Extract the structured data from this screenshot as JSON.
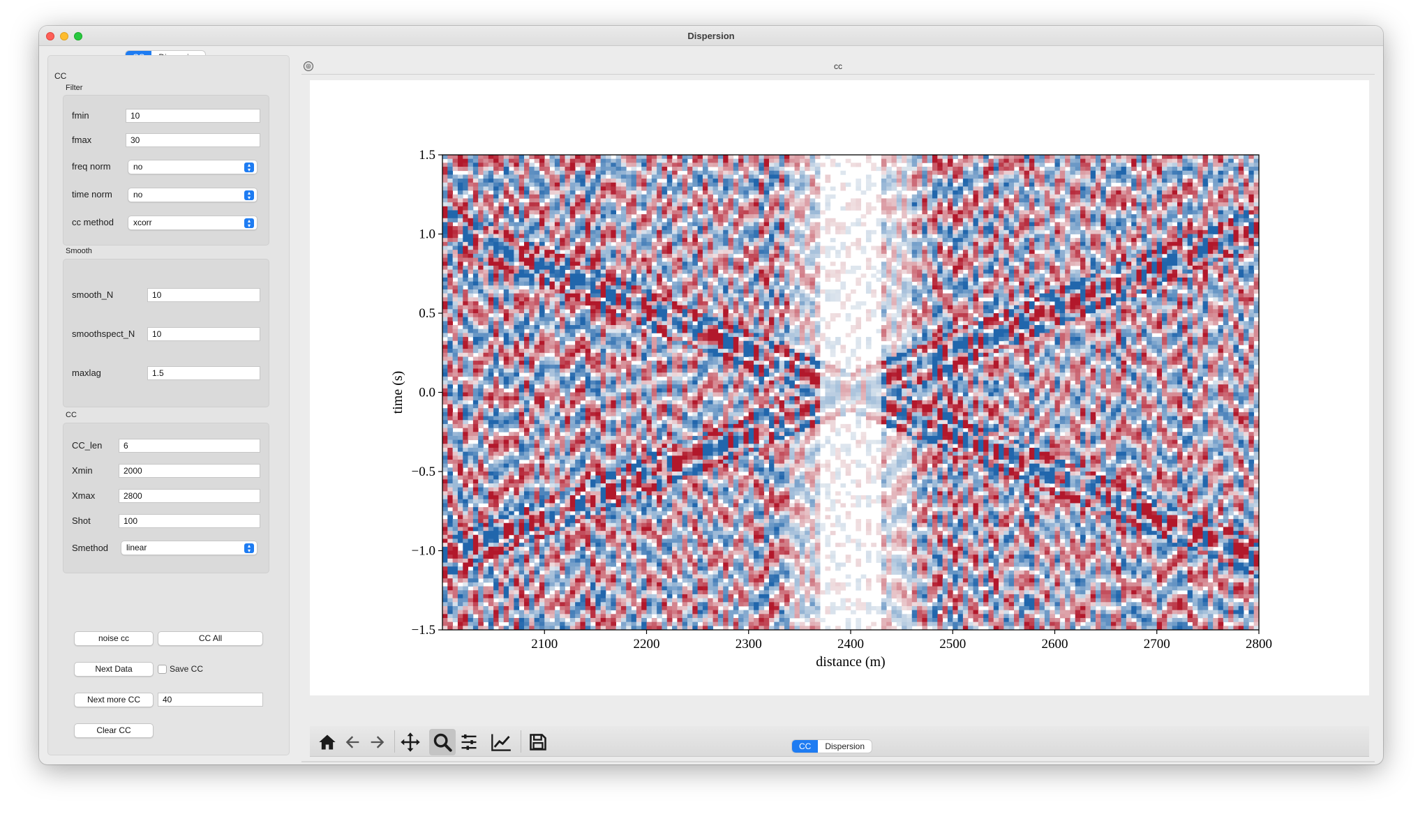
{
  "window": {
    "title": "Dispersion"
  },
  "left_tabs": [
    {
      "label": "CC",
      "active": true
    },
    {
      "label": "Dispersion",
      "active": false
    }
  ],
  "bottom_tabs": [
    {
      "label": "CC",
      "active": true
    },
    {
      "label": "Dispersion",
      "active": false
    }
  ],
  "panel": {
    "title": "CC",
    "filter": {
      "label": "Filter",
      "fmin_label": "fmin",
      "fmin_value": "10",
      "fmax_label": "fmax",
      "fmax_value": "30",
      "freqnorm_label": "freq norm",
      "freqnorm_value": "no",
      "timenorm_label": "time norm",
      "timenorm_value": "no",
      "ccmethod_label": "cc method",
      "ccmethod_value": "xcorr"
    },
    "smooth": {
      "label": "Smooth",
      "smoothN_label": "smooth_N",
      "smoothN_value": "10",
      "smoothspect_label": "smoothspect_N",
      "smoothspect_value": "10",
      "maxlag_label": "maxlag",
      "maxlag_value": "1.5"
    },
    "cc": {
      "label": "CC",
      "cclen_label": "CC_len",
      "cclen_value": "6",
      "xmin_label": "Xmin",
      "xmin_value": "2000",
      "xmax_label": "Xmax",
      "xmax_value": "2800",
      "shot_label": "Shot",
      "shot_value": "100",
      "smethod_label": "Smethod",
      "smethod_value": "linear"
    },
    "buttons": {
      "noise_cc": "noise cc",
      "cc_all": "CC All",
      "next_data": "Next Data",
      "save_cc": "Save CC",
      "save_cc_checked": false,
      "next_more_cc": "Next more CC",
      "next_more_value": "40",
      "clear_cc": "Clear CC"
    }
  },
  "plot_area": {
    "title": "cc"
  },
  "toolbar": {
    "icons": [
      "home-icon",
      "back-arrow-icon",
      "forward-arrow-icon",
      "pan-icon",
      "zoom-icon",
      "configure-subplots-icon",
      "edit-axis-icon",
      "save-icon"
    ],
    "active": "zoom-icon"
  },
  "chart_data": {
    "type": "heatmap",
    "title": "",
    "xlabel": "distance (m)",
    "ylabel": "time (s)",
    "xlim": [
      2000,
      2800
    ],
    "ylim": [
      -1.5,
      1.5
    ],
    "xticks": [
      2100,
      2200,
      2300,
      2400,
      2500,
      2600,
      2700,
      2800
    ],
    "xtick_labels": [
      "2100",
      "2200",
      "2300",
      "2400",
      "2500",
      "2600",
      "2700",
      "2800"
    ],
    "yticks": [
      1.5,
      1.0,
      0.5,
      0.0,
      -0.5,
      -1.0,
      -1.5
    ],
    "ytick_labels": [
      "1.5",
      "1.0",
      "0.5",
      "0.0",
      "−0.5",
      "−1.0",
      "−1.5"
    ],
    "colormap": "RdBu (red positive, blue negative)",
    "colors": {
      "positive": "#b2182b",
      "negative": "#2166ac"
    }
  }
}
